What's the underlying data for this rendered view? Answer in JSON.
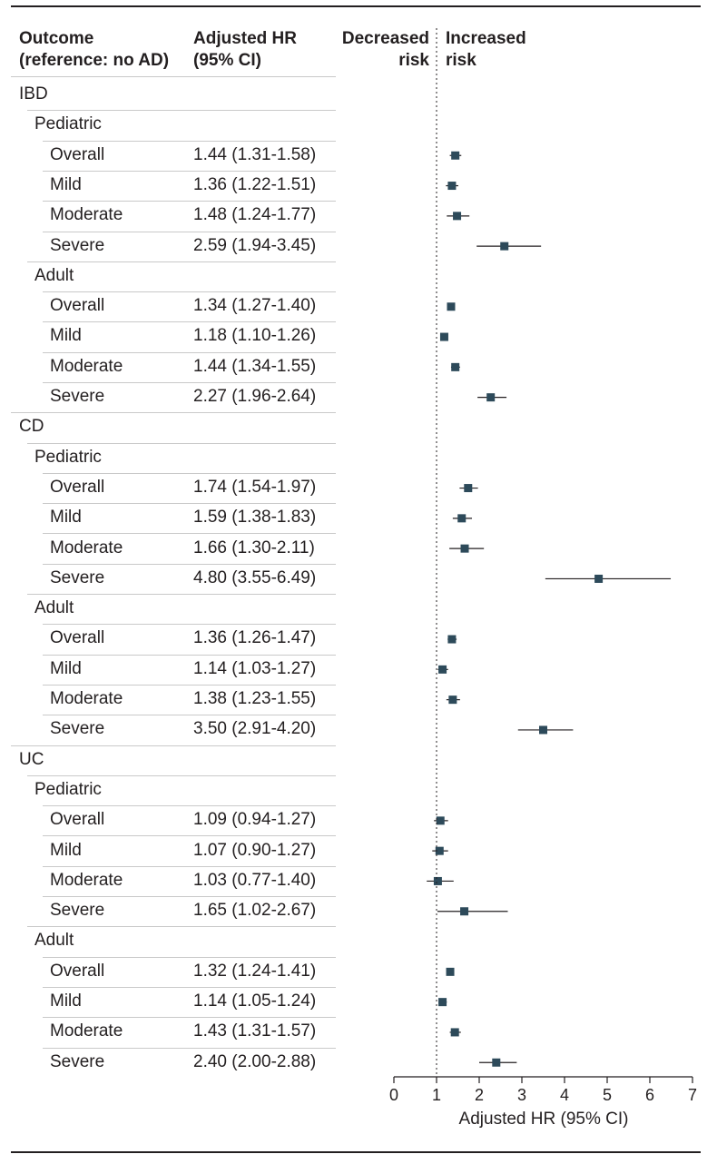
{
  "header": {
    "outcome_line1": "Outcome",
    "outcome_line2": "(reference: no AD)",
    "hr_line1": "Adjusted HR",
    "hr_line2": "(95% CI)",
    "decreased_line1": "Decreased",
    "decreased_line2": "risk",
    "increased_line1": "Increased",
    "increased_line2": "risk"
  },
  "chart_data": {
    "type": "forest",
    "xlabel": "Adjusted HR (95% CI)",
    "xlim": [
      0,
      7
    ],
    "xticks": [
      0,
      1,
      2,
      3,
      4,
      5,
      6,
      7
    ],
    "reference_line": 1,
    "marker_color": "#2d4a5a",
    "rows": [
      {
        "label": "IBD",
        "level": 0
      },
      {
        "label": "Pediatric",
        "level": 1
      },
      {
        "label": "Overall",
        "level": 2,
        "hr_text": "1.44 (1.31-1.58)",
        "hr": 1.44,
        "lo": 1.31,
        "hi": 1.58
      },
      {
        "label": "Mild",
        "level": 2,
        "hr_text": "1.36 (1.22-1.51)",
        "hr": 1.36,
        "lo": 1.22,
        "hi": 1.51
      },
      {
        "label": "Moderate",
        "level": 2,
        "hr_text": "1.48 (1.24-1.77)",
        "hr": 1.48,
        "lo": 1.24,
        "hi": 1.77
      },
      {
        "label": "Severe",
        "level": 2,
        "hr_text": "2.59 (1.94-3.45)",
        "hr": 2.59,
        "lo": 1.94,
        "hi": 3.45
      },
      {
        "label": "Adult",
        "level": 1
      },
      {
        "label": "Overall",
        "level": 2,
        "hr_text": "1.34 (1.27-1.40)",
        "hr": 1.34,
        "lo": 1.27,
        "hi": 1.4
      },
      {
        "label": "Mild",
        "level": 2,
        "hr_text": "1.18 (1.10-1.26)",
        "hr": 1.18,
        "lo": 1.1,
        "hi": 1.26
      },
      {
        "label": "Moderate",
        "level": 2,
        "hr_text": "1.44 (1.34-1.55)",
        "hr": 1.44,
        "lo": 1.34,
        "hi": 1.55
      },
      {
        "label": "Severe",
        "level": 2,
        "hr_text": "2.27 (1.96-2.64)",
        "hr": 2.27,
        "lo": 1.96,
        "hi": 2.64
      },
      {
        "label": "CD",
        "level": 0
      },
      {
        "label": "Pediatric",
        "level": 1
      },
      {
        "label": "Overall",
        "level": 2,
        "hr_text": "1.74 (1.54-1.97)",
        "hr": 1.74,
        "lo": 1.54,
        "hi": 1.97
      },
      {
        "label": "Mild",
        "level": 2,
        "hr_text": "1.59 (1.38-1.83)",
        "hr": 1.59,
        "lo": 1.38,
        "hi": 1.83
      },
      {
        "label": "Moderate",
        "level": 2,
        "hr_text": "1.66 (1.30-2.11)",
        "hr": 1.66,
        "lo": 1.3,
        "hi": 2.11
      },
      {
        "label": "Severe",
        "level": 2,
        "hr_text": "4.80 (3.55-6.49)",
        "hr": 4.8,
        "lo": 3.55,
        "hi": 6.49
      },
      {
        "label": "Adult",
        "level": 1
      },
      {
        "label": "Overall",
        "level": 2,
        "hr_text": "1.36 (1.26-1.47)",
        "hr": 1.36,
        "lo": 1.26,
        "hi": 1.47
      },
      {
        "label": "Mild",
        "level": 2,
        "hr_text": "1.14 (1.03-1.27)",
        "hr": 1.14,
        "lo": 1.03,
        "hi": 1.27
      },
      {
        "label": "Moderate",
        "level": 2,
        "hr_text": "1.38 (1.23-1.55)",
        "hr": 1.38,
        "lo": 1.23,
        "hi": 1.55
      },
      {
        "label": "Severe",
        "level": 2,
        "hr_text": "3.50 (2.91-4.20)",
        "hr": 3.5,
        "lo": 2.91,
        "hi": 4.2
      },
      {
        "label": "UC",
        "level": 0
      },
      {
        "label": "Pediatric",
        "level": 1
      },
      {
        "label": "Overall",
        "level": 2,
        "hr_text": "1.09 (0.94-1.27)",
        "hr": 1.09,
        "lo": 0.94,
        "hi": 1.27
      },
      {
        "label": "Mild",
        "level": 2,
        "hr_text": "1.07 (0.90-1.27)",
        "hr": 1.07,
        "lo": 0.9,
        "hi": 1.27
      },
      {
        "label": "Moderate",
        "level": 2,
        "hr_text": "1.03 (0.77-1.40)",
        "hr": 1.03,
        "lo": 0.77,
        "hi": 1.4
      },
      {
        "label": "Severe",
        "level": 2,
        "hr_text": "1.65 (1.02-2.67)",
        "hr": 1.65,
        "lo": 1.02,
        "hi": 2.67
      },
      {
        "label": "Adult",
        "level": 1
      },
      {
        "label": "Overall",
        "level": 2,
        "hr_text": "1.32 (1.24-1.41)",
        "hr": 1.32,
        "lo": 1.24,
        "hi": 1.41
      },
      {
        "label": "Mild",
        "level": 2,
        "hr_text": "1.14 (1.05-1.24)",
        "hr": 1.14,
        "lo": 1.05,
        "hi": 1.24
      },
      {
        "label": "Moderate",
        "level": 2,
        "hr_text": "1.43 (1.31-1.57)",
        "hr": 1.43,
        "lo": 1.31,
        "hi": 1.57
      },
      {
        "label": "Severe",
        "level": 2,
        "hr_text": "2.40 (2.00-2.88)",
        "hr": 2.4,
        "lo": 2.0,
        "hi": 2.88
      }
    ]
  }
}
